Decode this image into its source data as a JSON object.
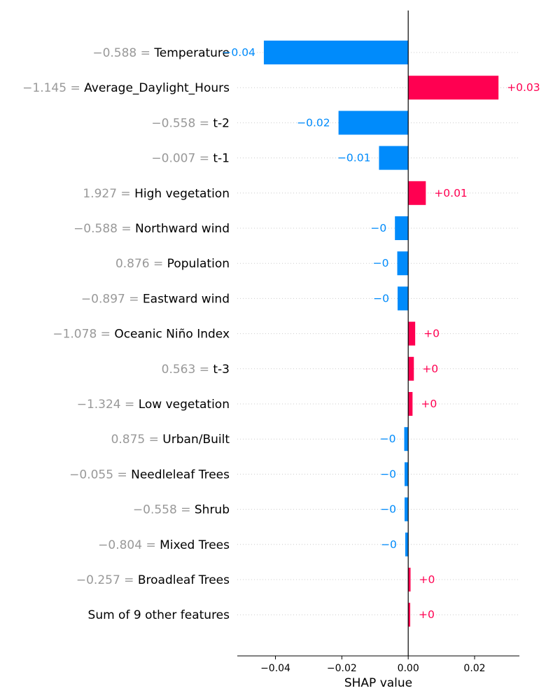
{
  "chart_data": {
    "type": "bar",
    "orientation": "horizontal",
    "chart_style": "SHAP bar plot (local explanation)",
    "xlabel": "SHAP value",
    "xlim": [
      -0.0515,
      0.0335
    ],
    "xticks": [
      -0.04,
      -0.02,
      0.0,
      0.02
    ],
    "xtick_labels": [
      "−0.04",
      "−0.02",
      "0.00",
      "0.02"
    ],
    "grid": "dotted horizontal guide line per row",
    "colors": {
      "positive": "#ff0051",
      "negative": "#008bfb",
      "feature_value": "#999999",
      "label": "#000000"
    },
    "features": [
      {
        "value": "−0.588",
        "name": "Temperature",
        "shap": -0.0435,
        "label": "−0.04"
      },
      {
        "value": "−1.145",
        "name": "Average_Daylight_Hours",
        "shap": 0.0272,
        "label": "+0.03"
      },
      {
        "value": "−0.558",
        "name": "t-2",
        "shap": -0.021,
        "label": "−0.02"
      },
      {
        "value": "−0.007",
        "name": "t-1",
        "shap": -0.0088,
        "label": "−0.01"
      },
      {
        "value": "1.927",
        "name": "High vegetation",
        "shap": 0.0053,
        "label": "+0.01"
      },
      {
        "value": "−0.588",
        "name": "Northward wind",
        "shap": -0.004,
        "label": "−0"
      },
      {
        "value": "0.876",
        "name": "Population",
        "shap": -0.0033,
        "label": "−0"
      },
      {
        "value": "−0.897",
        "name": "Eastward wind",
        "shap": -0.0032,
        "label": "−0"
      },
      {
        "value": "−1.078",
        "name": "Oceanic Niño Index",
        "shap": 0.0021,
        "label": "+0"
      },
      {
        "value": "0.563",
        "name": "t-3",
        "shap": 0.0017,
        "label": "+0"
      },
      {
        "value": "−1.324",
        "name": "Low vegetation",
        "shap": 0.0013,
        "label": "+0"
      },
      {
        "value": "0.875",
        "name": "Urban/Built",
        "shap": -0.0012,
        "label": "−0"
      },
      {
        "value": "−0.055",
        "name": "Needleleaf Trees",
        "shap": -0.0011,
        "label": "−0"
      },
      {
        "value": "−0.558",
        "name": "Shrub",
        "shap": -0.0011,
        "label": "−0"
      },
      {
        "value": "−0.804",
        "name": "Mixed Trees",
        "shap": -0.0009,
        "label": "−0"
      },
      {
        "value": "−0.257",
        "name": "Broadleaf Trees",
        "shap": 0.0007,
        "label": "+0"
      },
      {
        "value": "",
        "name": "Sum of 9 other features",
        "shap": 0.0006,
        "label": "+0"
      }
    ]
  }
}
